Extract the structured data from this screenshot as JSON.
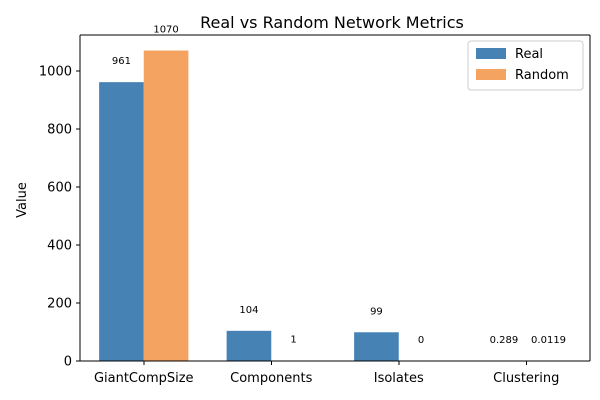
{
  "chart_data": {
    "type": "bar",
    "title": "Real vs Random Network Metrics",
    "xlabel": "",
    "ylabel": "Value",
    "categories": [
      "GiantCompSize",
      "Components",
      "Isolates",
      "Clustering"
    ],
    "series": [
      {
        "name": "Real",
        "color": "#4682b4",
        "values": [
          961,
          104,
          99,
          0.289
        ],
        "labels": [
          "961",
          "104",
          "99",
          "0.289"
        ]
      },
      {
        "name": "Random",
        "color": "#f4a460",
        "values": [
          1070,
          1,
          0,
          0.0119
        ],
        "labels": [
          "1070",
          "1",
          "0",
          "0.0119"
        ]
      }
    ],
    "ylim": [
      0,
      1123.5
    ],
    "yticks": [
      0,
      200,
      400,
      600,
      800,
      1000
    ],
    "grid": false,
    "legend": "top-right"
  }
}
